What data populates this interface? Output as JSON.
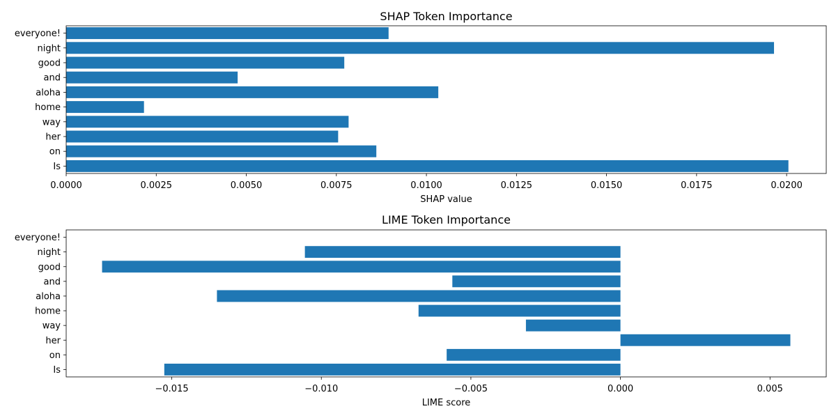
{
  "chart_data": [
    {
      "type": "bar",
      "orientation": "horizontal",
      "title": "SHAP Token Importance",
      "xlabel": "SHAP value",
      "ylabel": "",
      "categories": [
        "everyone!",
        "night",
        "good",
        "and",
        "aloha",
        "home",
        "way",
        "her",
        "on",
        "Is"
      ],
      "values": [
        0.00895,
        0.01965,
        0.00772,
        0.00476,
        0.01033,
        0.00216,
        0.00784,
        0.00755,
        0.00861,
        0.02005
      ],
      "xlim": [
        0.0,
        0.0211
      ],
      "xticks": [
        "0.0000",
        "0.0025",
        "0.0050",
        "0.0075",
        "0.0100",
        "0.0125",
        "0.0150",
        "0.0175",
        "0.0200"
      ],
      "xtick_values": [
        0.0,
        0.0025,
        0.005,
        0.0075,
        0.01,
        0.0125,
        0.015,
        0.0175,
        0.02
      ],
      "grid": false,
      "color": "#1f77b4"
    },
    {
      "type": "bar",
      "orientation": "horizontal",
      "title": "LIME Token Importance",
      "xlabel": "LIME score",
      "ylabel": "",
      "categories": [
        "everyone!",
        "night",
        "good",
        "and",
        "aloha",
        "home",
        "way",
        "her",
        "on",
        "Is"
      ],
      "values": [
        0.0,
        -0.01055,
        -0.01733,
        -0.00562,
        -0.01349,
        -0.00675,
        -0.00316,
        0.00568,
        -0.00581,
        -0.01525
      ],
      "xlim": [
        -0.01853,
        0.00688
      ],
      "xticks": [
        "−0.015",
        "−0.010",
        "−0.005",
        "0.000",
        "0.005"
      ],
      "xtick_values": [
        -0.015,
        -0.01,
        -0.005,
        0.0,
        0.005
      ],
      "grid": false,
      "color": "#1f77b4"
    }
  ]
}
